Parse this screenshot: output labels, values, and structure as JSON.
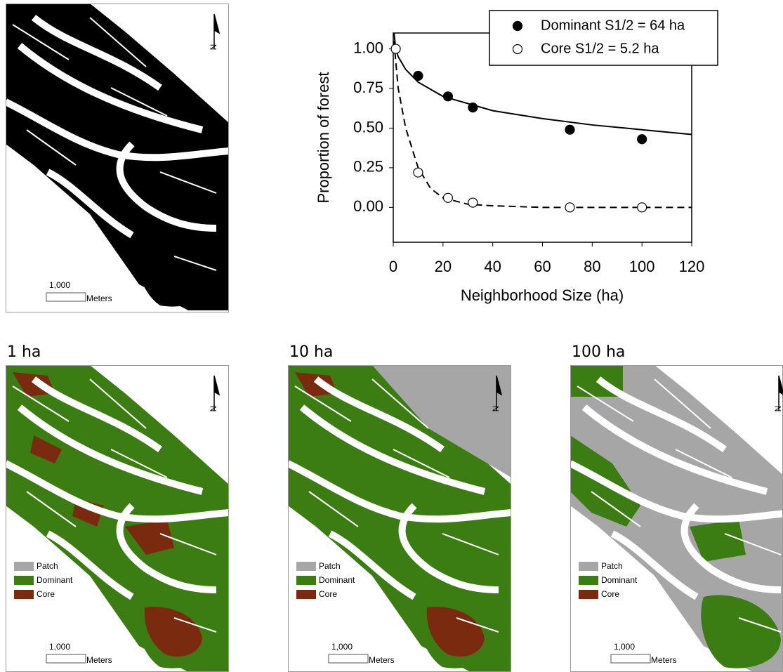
{
  "chart_data": {
    "type": "scatter",
    "xlabel": "Neighborhood Size (ha)",
    "ylabel": "Proportion of forest",
    "xlim": [
      0,
      120
    ],
    "xticks": [
      0,
      20,
      40,
      60,
      80,
      100,
      120
    ],
    "ylim": [
      -0.22,
      1.1
    ],
    "yticks": [
      {
        "value": 0,
        "label": "0.00"
      },
      {
        "value": 0.25,
        "label": "0.25"
      },
      {
        "value": 0.5,
        "label": "0.50"
      },
      {
        "value": 0.75,
        "label": "0.75"
      },
      {
        "value": 1,
        "label": "1.00"
      }
    ],
    "series": [
      {
        "name": "Dominant S1/2 = 64 ha",
        "marker": "filled",
        "color": "#000000",
        "x": [
          10,
          22,
          32,
          71,
          100
        ],
        "values": [
          0.83,
          0.7,
          0.63,
          0.49,
          0.43
        ]
      },
      {
        "name": "Core S1/2 = 5.2 ha",
        "marker": "open",
        "color": "#000000",
        "x": [
          1,
          10,
          22,
          32,
          71,
          100
        ],
        "values": [
          1.0,
          0.22,
          0.06,
          0.03,
          0.0,
          0.0
        ]
      }
    ],
    "curves": [
      {
        "dash": false,
        "color": "#000000",
        "x": [
          0.3,
          1,
          2,
          5,
          10,
          20,
          40,
          60,
          80,
          100,
          120
        ],
        "values": [
          1.1,
          1.0,
          0.95,
          0.87,
          0.79,
          0.7,
          0.61,
          0.56,
          0.52,
          0.49,
          0.46
        ]
      },
      {
        "dash": true,
        "color": "#000000",
        "x": [
          0.3,
          1,
          2,
          5,
          10,
          15,
          20,
          30,
          40,
          60,
          120
        ],
        "values": [
          1.05,
          0.92,
          0.75,
          0.5,
          0.25,
          0.12,
          0.06,
          0.02,
          0.01,
          0,
          0
        ]
      }
    ]
  },
  "maps": {
    "scale_label": "1,000",
    "scale_unit": "Meters",
    "north": "N",
    "panels": [
      {
        "title": "1 ha"
      },
      {
        "title": "10 ha"
      },
      {
        "title": "100 ha"
      }
    ],
    "legend": [
      {
        "label": "Patch",
        "color": "#a6a6a6"
      },
      {
        "label": "Dominant",
        "color": "#3b7d12"
      },
      {
        "label": "Core",
        "color": "#7a2a0e"
      }
    ]
  }
}
